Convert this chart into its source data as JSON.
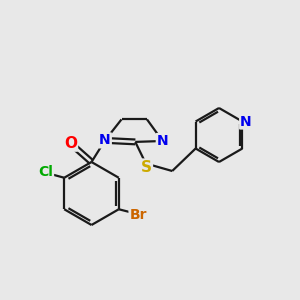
{
  "bg_color": "#e8e8e8",
  "bond_color": "#1a1a1a",
  "bond_width": 1.6,
  "atom_colors": {
    "O": "#ff0000",
    "N": "#0000ee",
    "Cl": "#00aa00",
    "Br": "#cc6600",
    "S": "#ccaa00",
    "C": "#1a1a1a"
  },
  "font_size_atom": 10,
  "figsize": [
    3.0,
    3.0
  ],
  "dpi": 100
}
